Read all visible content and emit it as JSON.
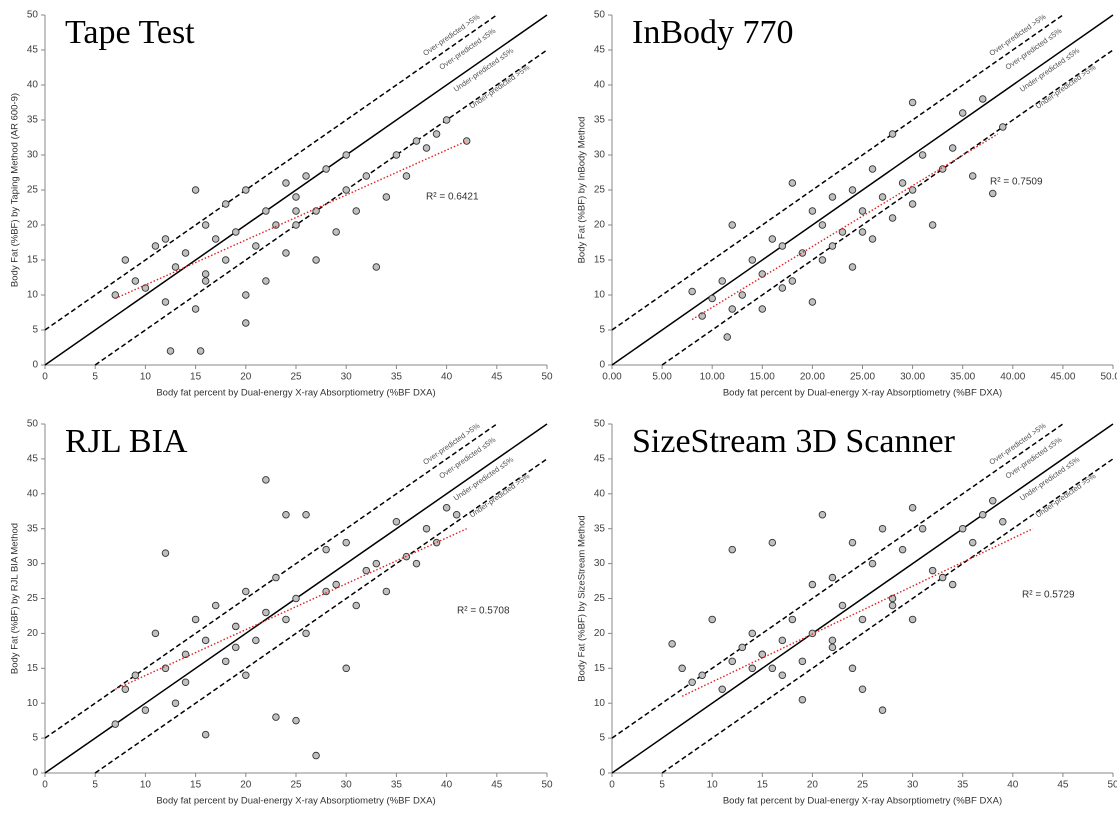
{
  "chart_data": [
    {
      "type": "scatter",
      "title": "Tape Test",
      "x_label": "Body fat percent by Dual-energy  X-ray Absorptiometry (%BF DXA)",
      "y_label": "Body Fat (%BF) by Taping Method (AR 600-9)",
      "xlim": [
        0,
        50
      ],
      "ylim": [
        0,
        50
      ],
      "xticks": [
        0,
        5,
        10,
        15,
        20,
        25,
        30,
        35,
        40,
        45,
        50
      ],
      "yticks": [
        0,
        5,
        10,
        15,
        20,
        25,
        30,
        35,
        40,
        45,
        50
      ],
      "color": "#c0c0c0",
      "x": [
        7,
        8,
        9,
        10,
        11,
        12,
        12.5,
        13,
        14,
        15,
        15.5,
        16,
        16,
        17,
        18,
        18,
        19,
        20,
        20,
        21,
        22,
        22,
        23,
        24,
        24,
        25,
        25,
        26,
        27,
        27,
        28,
        29,
        30,
        30,
        31,
        32,
        33,
        34,
        35,
        36,
        37,
        38,
        39,
        40,
        42,
        12,
        15,
        20,
        16,
        25
      ],
      "values": [
        10,
        15,
        12,
        11,
        17,
        9,
        2,
        14,
        16,
        25,
        2,
        12,
        20,
        18,
        15,
        23,
        19,
        6,
        25,
        17,
        22,
        12,
        20,
        26,
        16,
        24,
        20,
        27,
        22,
        15,
        28,
        19,
        25,
        30,
        22,
        27,
        14,
        24,
        30,
        27,
        32,
        31,
        33,
        35,
        32,
        18,
        8,
        10,
        13,
        22
      ],
      "trendline": {
        "x": [
          7,
          42
        ],
        "values": [
          9.5,
          32
        ]
      },
      "r_squared": "R² = 0.6421",
      "reference_lines": [
        {
          "offset": 5,
          "style": "dashed"
        },
        {
          "offset": 0,
          "style": "solid"
        },
        {
          "offset": -5,
          "style": "dashed"
        }
      ],
      "region_labels": [
        "Over-predicted >5%",
        "Over-predicted ≤5%",
        "Under-predicted ≤5%",
        "Under-predicted >5%"
      ]
    },
    {
      "type": "scatter",
      "title": "InBody 770",
      "x_label": "Body fat percent by Dual-energy  X-ray Absorptiometry (%BF DXA)",
      "y_label": "Body Fat (%BF) by InBody Method",
      "xlim": [
        0,
        50
      ],
      "ylim": [
        0,
        50
      ],
      "xticks": [
        {
          "value": 0,
          "label": "0.00"
        },
        {
          "value": 5,
          "label": "5.00"
        },
        {
          "value": 10,
          "label": "10.00"
        },
        {
          "value": 15,
          "label": "15.00"
        },
        {
          "value": 20,
          "label": "20.00"
        },
        {
          "value": 25,
          "label": "25.00"
        },
        {
          "value": 30,
          "label": "30.00"
        },
        {
          "value": 35,
          "label": "35.00"
        },
        {
          "value": 40,
          "label": "40.00"
        },
        {
          "value": 45,
          "label": "45.00"
        },
        {
          "value": 50,
          "label": "50.00"
        }
      ],
      "yticks": [
        0,
        5,
        10,
        15,
        20,
        25,
        30,
        35,
        40,
        45,
        50
      ],
      "color": "#c0c0c0",
      "x": [
        8,
        9,
        10,
        11,
        11.5,
        12,
        13,
        14,
        15,
        15,
        16,
        17,
        18,
        18,
        19,
        20,
        20,
        21,
        22,
        22,
        23,
        24,
        24,
        25,
        26,
        26,
        27,
        28,
        28,
        29,
        30,
        30,
        31,
        32,
        33,
        34,
        35,
        36,
        37,
        38,
        39,
        12,
        17,
        21,
        25,
        30
      ],
      "values": [
        10.5,
        7,
        9.5,
        12,
        4,
        20,
        10,
        15,
        13,
        8,
        18,
        17,
        26,
        12,
        16,
        22,
        9,
        20,
        17,
        24,
        19,
        25,
        14,
        22,
        28,
        18,
        24,
        33,
        21,
        26,
        37.5,
        23,
        30,
        20,
        28,
        31,
        36,
        27,
        38,
        24.5,
        34,
        8,
        11,
        15,
        19,
        25
      ],
      "trendline": {
        "x": [
          8,
          38.5
        ],
        "values": [
          6.5,
          33
        ]
      },
      "r_squared": "R² = 0.7509",
      "reference_lines": [
        {
          "offset": 5,
          "style": "dashed"
        },
        {
          "offset": 0,
          "style": "solid"
        },
        {
          "offset": -5,
          "style": "dashed"
        }
      ],
      "region_labels": [
        "Over-predicted >5%",
        "Over-predicted ≤5%",
        "Under-predicted ≤5%",
        "Under-predicted >5%"
      ]
    },
    {
      "type": "scatter",
      "title": "RJL BIA",
      "x_label": "Body fat percent by Dual-energy  X-ray Absorptiometry (%BF DXA)",
      "y_label": "Body Fat (%BF) by RJL BIA Method",
      "xlim": [
        0,
        50
      ],
      "ylim": [
        0,
        50
      ],
      "xticks": [
        0,
        5,
        10,
        15,
        20,
        25,
        30,
        35,
        40,
        45,
        50
      ],
      "yticks": [
        0,
        5,
        10,
        15,
        20,
        25,
        30,
        35,
        40,
        45,
        50
      ],
      "color": "#c0c0c0",
      "x": [
        7,
        8,
        9,
        10,
        11,
        12,
        12,
        13,
        14,
        15,
        16,
        16,
        17,
        18,
        19,
        20,
        20,
        21,
        22,
        22,
        23,
        23,
        24,
        25,
        25,
        26,
        26,
        27,
        28,
        29,
        30,
        30,
        31,
        32,
        33,
        34,
        35,
        36,
        37,
        38,
        39,
        40,
        41,
        14,
        19,
        24,
        28
      ],
      "values": [
        7,
        12,
        14,
        9,
        20,
        31.5,
        15,
        10,
        17,
        22,
        5.5,
        19,
        24,
        16,
        21,
        26,
        14,
        19,
        42,
        23,
        8,
        28,
        37,
        7.5,
        25,
        37,
        20,
        2.5,
        32,
        27,
        15,
        33,
        24,
        29,
        30,
        26,
        36,
        31,
        30,
        35,
        33,
        38,
        37,
        13,
        18,
        22,
        26
      ],
      "trendline": {
        "x": [
          7,
          42
        ],
        "values": [
          12,
          35
        ]
      },
      "r_squared": "R² = 0.5708",
      "reference_lines": [
        {
          "offset": 5,
          "style": "dashed"
        },
        {
          "offset": 0,
          "style": "solid"
        },
        {
          "offset": -5,
          "style": "dashed"
        }
      ],
      "region_labels": [
        "Over-predicted >5%",
        "Over-predicted ≤5%",
        "Under-predicted ≤5%",
        "Under-predicted >5%"
      ]
    },
    {
      "type": "scatter",
      "title": "SizeStream 3D Scanner",
      "x_label": "Body fat percent by Dual-energy  X-ray Absorptiometry (%BF DXA)",
      "y_label": "Body Fat (%BF) by SizeStream Method",
      "xlim": [
        0,
        50
      ],
      "ylim": [
        0,
        50
      ],
      "xticks": [
        0,
        5,
        10,
        15,
        20,
        25,
        30,
        35,
        40,
        45,
        50
      ],
      "yticks": [
        0,
        5,
        10,
        15,
        20,
        25,
        30,
        35,
        40,
        45,
        50
      ],
      "color": "#c0c0c0",
      "x": [
        6,
        7,
        8,
        9,
        10,
        11,
        12,
        12,
        13,
        14,
        14,
        15,
        16,
        17,
        17,
        18,
        19,
        20,
        20,
        21,
        22,
        22,
        23,
        24,
        24,
        25,
        26,
        27,
        27,
        28,
        29,
        30,
        30,
        31,
        32,
        33,
        34,
        35,
        36,
        37,
        38,
        39,
        16,
        19,
        22,
        25,
        28,
        15
      ],
      "values": [
        18.5,
        15,
        13,
        14,
        22,
        12,
        32,
        16,
        18,
        15,
        20,
        17,
        33,
        19,
        14,
        22,
        10.5,
        20,
        27,
        37,
        18,
        28,
        24,
        33,
        15,
        12,
        30,
        9,
        35,
        25,
        32,
        38,
        22,
        35,
        29,
        28,
        27,
        35,
        33,
        37,
        39,
        36,
        15,
        16,
        19,
        22,
        24,
        17
      ],
      "trendline": {
        "x": [
          7,
          42
        ],
        "values": [
          11,
          35
        ]
      },
      "r_squared": "R² = 0.5729",
      "reference_lines": [
        {
          "offset": 5,
          "style": "dashed"
        },
        {
          "offset": 0,
          "style": "solid"
        },
        {
          "offset": -5,
          "style": "dashed"
        }
      ],
      "region_labels": [
        "Over-predicted >5%",
        "Over-predicted ≤5%",
        "Under-predicted ≤5%",
        "Under-predicted >5%"
      ]
    }
  ]
}
